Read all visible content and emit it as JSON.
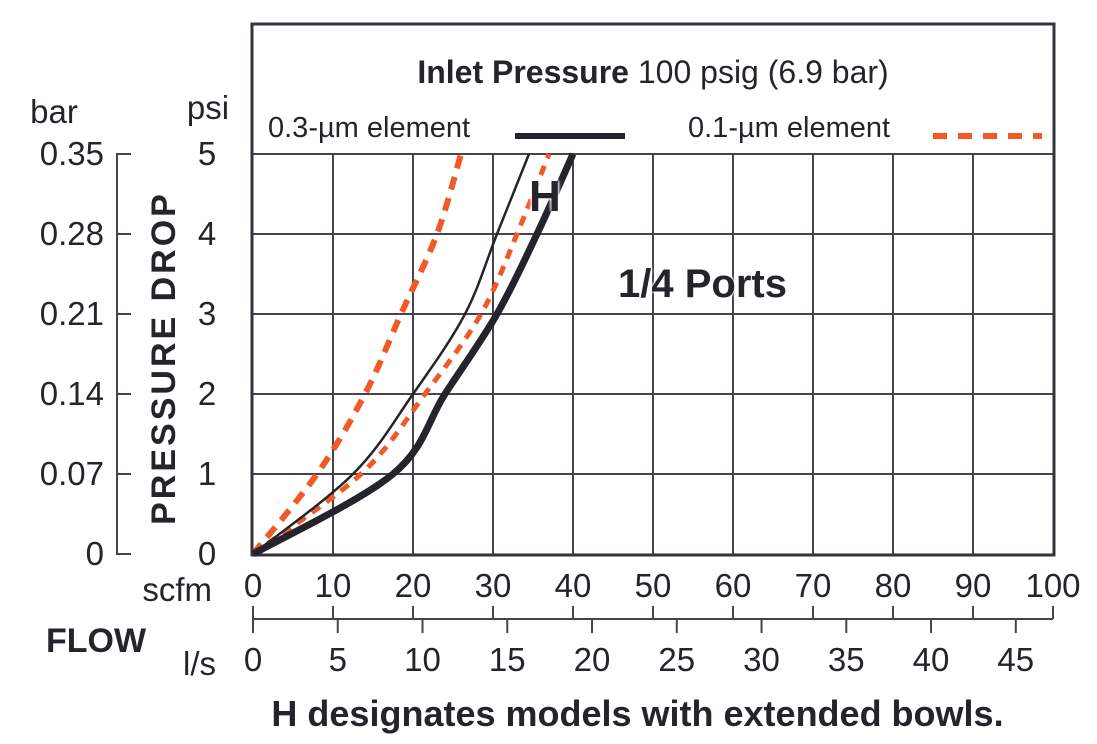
{
  "title": {
    "bold": "Inlet Pressure",
    "normal": " 100 psig (6.9 bar)"
  },
  "legend": [
    {
      "label": "0.3-µm element",
      "style": "solid"
    },
    {
      "label": "0.1-µm element",
      "style": "dashed"
    }
  ],
  "annotations": {
    "h_marker": "H",
    "ports": "1/4 Ports",
    "footnote": "H designates models with extended bowls."
  },
  "axes": {
    "y_left_unit": "bar",
    "y_left_ticks": [
      "0.35",
      "0.28",
      "0.21",
      "0.14",
      "0.07",
      "0"
    ],
    "y_right_unit": "psi",
    "y_right_ticks": [
      "5",
      "4",
      "3",
      "2",
      "1",
      "0"
    ],
    "y_label": "PRESSURE DROP",
    "x_label": "FLOW",
    "x_top_unit": "scfm",
    "x_top_ticks": [
      "0",
      "10",
      "20",
      "30",
      "40",
      "50",
      "60",
      "70",
      "80",
      "90",
      "100"
    ],
    "x_bottom_unit": "l/s",
    "x_bottom_ticks": [
      "0",
      "5",
      "10",
      "15",
      "20",
      "25",
      "30",
      "35",
      "40",
      "45"
    ]
  },
  "colors": {
    "ink": "#26242B",
    "grid": "#45434C",
    "border": "#35333C",
    "orange": "#F15A24"
  },
  "chart_data": {
    "type": "line",
    "title": "Inlet Pressure 100 psig (6.9 bar)",
    "xlabel": "FLOW (scfm, l/s)",
    "ylabel": "PRESSURE DROP (psi, bar)",
    "xlim_scfm": [
      0,
      100
    ],
    "ylim_psi": [
      0,
      5
    ],
    "grid": true,
    "legend_position": "top",
    "ls_per_scfm_factor": 2.11888,
    "x_scfm_ticks": [
      0,
      10,
      20,
      30,
      40,
      50,
      60,
      70,
      80,
      90,
      100
    ],
    "x_ls_ticks": [
      0,
      5,
      10,
      15,
      20,
      25,
      30,
      35,
      40,
      45
    ],
    "y_psi_ticks": [
      0,
      1,
      2,
      3,
      4,
      5
    ],
    "y_bar_tick_labels": [
      "0",
      "0.07",
      "0.14",
      "0.21",
      "0.28",
      "0.35"
    ],
    "series": [
      {
        "key": "01um",
        "name": "0.1-µm element",
        "color": "#F15A24",
        "dash": [
          13,
          9
        ],
        "width": 6,
        "points_scfm_psi": [
          [
            0,
            0
          ],
          [
            8,
            1
          ],
          [
            14,
            2
          ],
          [
            18.5,
            3
          ],
          [
            23,
            4
          ],
          [
            26,
            5
          ]
        ]
      },
      {
        "key": "01um-h",
        "name": "0.1-µm element (H extended bowl)",
        "color": "#F15A24",
        "dash": [
          10,
          8
        ],
        "width": 5,
        "points_scfm_psi": [
          [
            0,
            0
          ],
          [
            13.5,
            1
          ],
          [
            21.5,
            2
          ],
          [
            28.5,
            3
          ],
          [
            33,
            4
          ],
          [
            37,
            5
          ]
        ]
      },
      {
        "key": "03um",
        "name": "0.3-µm element",
        "color": "#26242B",
        "dash": null,
        "width": 2.5,
        "points_scfm_psi": [
          [
            0,
            0
          ],
          [
            12.5,
            1
          ],
          [
            20,
            2
          ],
          [
            26.5,
            3
          ],
          [
            30.5,
            4
          ],
          [
            34.5,
            5
          ]
        ]
      },
      {
        "key": "03um-h",
        "name": "0.3-µm element (H extended bowl)",
        "color": "#26242B",
        "dash": null,
        "width": 7,
        "points_scfm_psi": [
          [
            0,
            0
          ],
          [
            17.5,
            1
          ],
          [
            24,
            2
          ],
          [
            30.5,
            3
          ],
          [
            35.5,
            4
          ],
          [
            40,
            5
          ]
        ]
      }
    ]
  }
}
